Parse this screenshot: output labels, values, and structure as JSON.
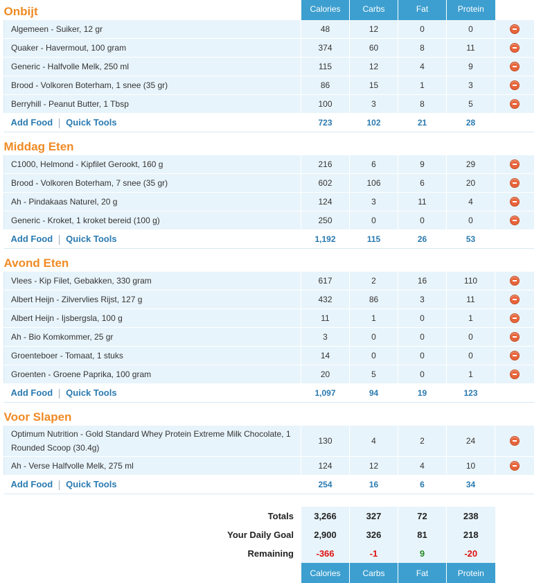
{
  "columns": [
    "Calories",
    "Carbs",
    "Fat",
    "Protein"
  ],
  "meals": [
    {
      "title": "Onbijt",
      "foods": [
        {
          "name": "Algemeen - Suiker, 12 gr",
          "calories": "48",
          "carbs": "12",
          "fat": "0",
          "protein": "0"
        },
        {
          "name": "Quaker - Havermout, 100 gram",
          "calories": "374",
          "carbs": "60",
          "fat": "8",
          "protein": "11"
        },
        {
          "name": "Generic - Halfvolle Melk, 250 ml",
          "calories": "115",
          "carbs": "12",
          "fat": "4",
          "protein": "9"
        },
        {
          "name": "Brood - Volkoren Boterham, 1 snee (35 gr)",
          "calories": "86",
          "carbs": "15",
          "fat": "1",
          "protein": "3"
        },
        {
          "name": "Berryhill - Peanut Butter, 1 Tbsp",
          "calories": "100",
          "carbs": "3",
          "fat": "8",
          "protein": "5"
        }
      ],
      "totals": {
        "calories": "723",
        "carbs": "102",
        "fat": "21",
        "protein": "28"
      }
    },
    {
      "title": "Middag Eten",
      "foods": [
        {
          "name": "C1000, Helmond - Kipfilet Gerookt, 160 g",
          "calories": "216",
          "carbs": "6",
          "fat": "9",
          "protein": "29"
        },
        {
          "name": "Brood - Volkoren Boterham, 7 snee (35 gr)",
          "calories": "602",
          "carbs": "106",
          "fat": "6",
          "protein": "20"
        },
        {
          "name": "Ah - Pindakaas Naturel, 20 g",
          "calories": "124",
          "carbs": "3",
          "fat": "11",
          "protein": "4"
        },
        {
          "name": "Generic - Kroket, 1 kroket bereid (100 g)",
          "calories": "250",
          "carbs": "0",
          "fat": "0",
          "protein": "0"
        }
      ],
      "totals": {
        "calories": "1,192",
        "carbs": "115",
        "fat": "26",
        "protein": "53"
      }
    },
    {
      "title": "Avond Eten",
      "foods": [
        {
          "name": "Vlees - Kip Filet, Gebakken, 330 gram",
          "calories": "617",
          "carbs": "2",
          "fat": "16",
          "protein": "110"
        },
        {
          "name": "Albert Heijn - Zilvervlies Rijst, 127 g",
          "calories": "432",
          "carbs": "86",
          "fat": "3",
          "protein": "11"
        },
        {
          "name": "Albert Heijn - Ijsbergsla, 100 g",
          "calories": "11",
          "carbs": "1",
          "fat": "0",
          "protein": "1"
        },
        {
          "name": "Ah - Bio Komkommer, 25 gr",
          "calories": "3",
          "carbs": "0",
          "fat": "0",
          "protein": "0"
        },
        {
          "name": "Groenteboer - Tomaat, 1 stuks",
          "calories": "14",
          "carbs": "0",
          "fat": "0",
          "protein": "0"
        },
        {
          "name": "Groenten - Groene Paprika, 100 gram",
          "calories": "20",
          "carbs": "5",
          "fat": "0",
          "protein": "1"
        }
      ],
      "totals": {
        "calories": "1,097",
        "carbs": "94",
        "fat": "19",
        "protein": "123"
      }
    },
    {
      "title": "Voor Slapen",
      "foods": [
        {
          "name": "Optimum Nutrition - Gold Standard Whey Protein Extreme Milk Chocolate, 1 Rounded Scoop (30.4g)",
          "calories": "130",
          "carbs": "4",
          "fat": "2",
          "protein": "24",
          "tall": true
        },
        {
          "name": "Ah - Verse Halfvolle Melk, 275 ml",
          "calories": "124",
          "carbs": "12",
          "fat": "4",
          "protein": "10"
        }
      ],
      "totals": {
        "calories": "254",
        "carbs": "16",
        "fat": "6",
        "protein": "34"
      }
    }
  ],
  "links": {
    "add_food": "Add Food",
    "quick_tools": "Quick Tools"
  },
  "icons": {
    "delete": "remove-circle-icon"
  },
  "summary": [
    {
      "label": "Totals",
      "calories": "3,266",
      "carbs": "327",
      "fat": "72",
      "protein": "238",
      "status": [
        "",
        "",
        "",
        ""
      ]
    },
    {
      "label": "Your Daily Goal",
      "calories": "2,900",
      "carbs": "326",
      "fat": "81",
      "protein": "218",
      "status": [
        "",
        "",
        "",
        ""
      ]
    },
    {
      "label": "Remaining",
      "calories": "-366",
      "carbs": "-1",
      "fat": "9",
      "protein": "-20",
      "status": [
        "neg",
        "neg",
        "pos",
        "neg"
      ]
    }
  ],
  "colors": {
    "accent": "#3d9fcf",
    "meal_title": "#f08a24",
    "row_bg": "#e8f4fb",
    "link": "#2a7ab0",
    "negative": "#dd1111",
    "positive": "#2a8a2a"
  }
}
